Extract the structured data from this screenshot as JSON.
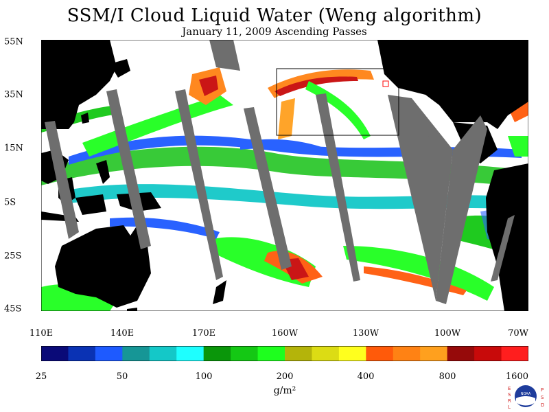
{
  "title": "SSM/I Cloud Liquid Water (Weng algorithm)",
  "subtitle": "January 11, 2009  Ascending Passes",
  "map": {
    "lat_labels": [
      "55N",
      "35N",
      "15N",
      "5S",
      "25S",
      "45S"
    ],
    "lon_labels": [
      "110E",
      "140E",
      "170E",
      "160W",
      "130W",
      "100W",
      "70W"
    ],
    "land_color": "#000000",
    "no_data_color": "#6e6e6e",
    "ocean_clear_color": "#ffffff"
  },
  "colorbar": {
    "colors": [
      "#0a0a78",
      "#0a32b4",
      "#1e5aff",
      "#169696",
      "#14c8c8",
      "#1effff",
      "#0a960a",
      "#14c814",
      "#1eff1e",
      "#b4b40a",
      "#dcdc14",
      "#ffff1e",
      "#ff5a0a",
      "#ff8214",
      "#ffa01e",
      "#960a0a",
      "#c80a0a",
      "#ff1e1e"
    ],
    "tick_labels": [
      "25",
      "50",
      "100",
      "200",
      "400",
      "800",
      "1600"
    ],
    "units_label": "g/m²"
  },
  "logo": {
    "left_letters": [
      "E",
      "S",
      "R",
      "L"
    ],
    "right_letters": [
      "P",
      "S",
      "D"
    ],
    "center_text": "NOAA"
  }
}
